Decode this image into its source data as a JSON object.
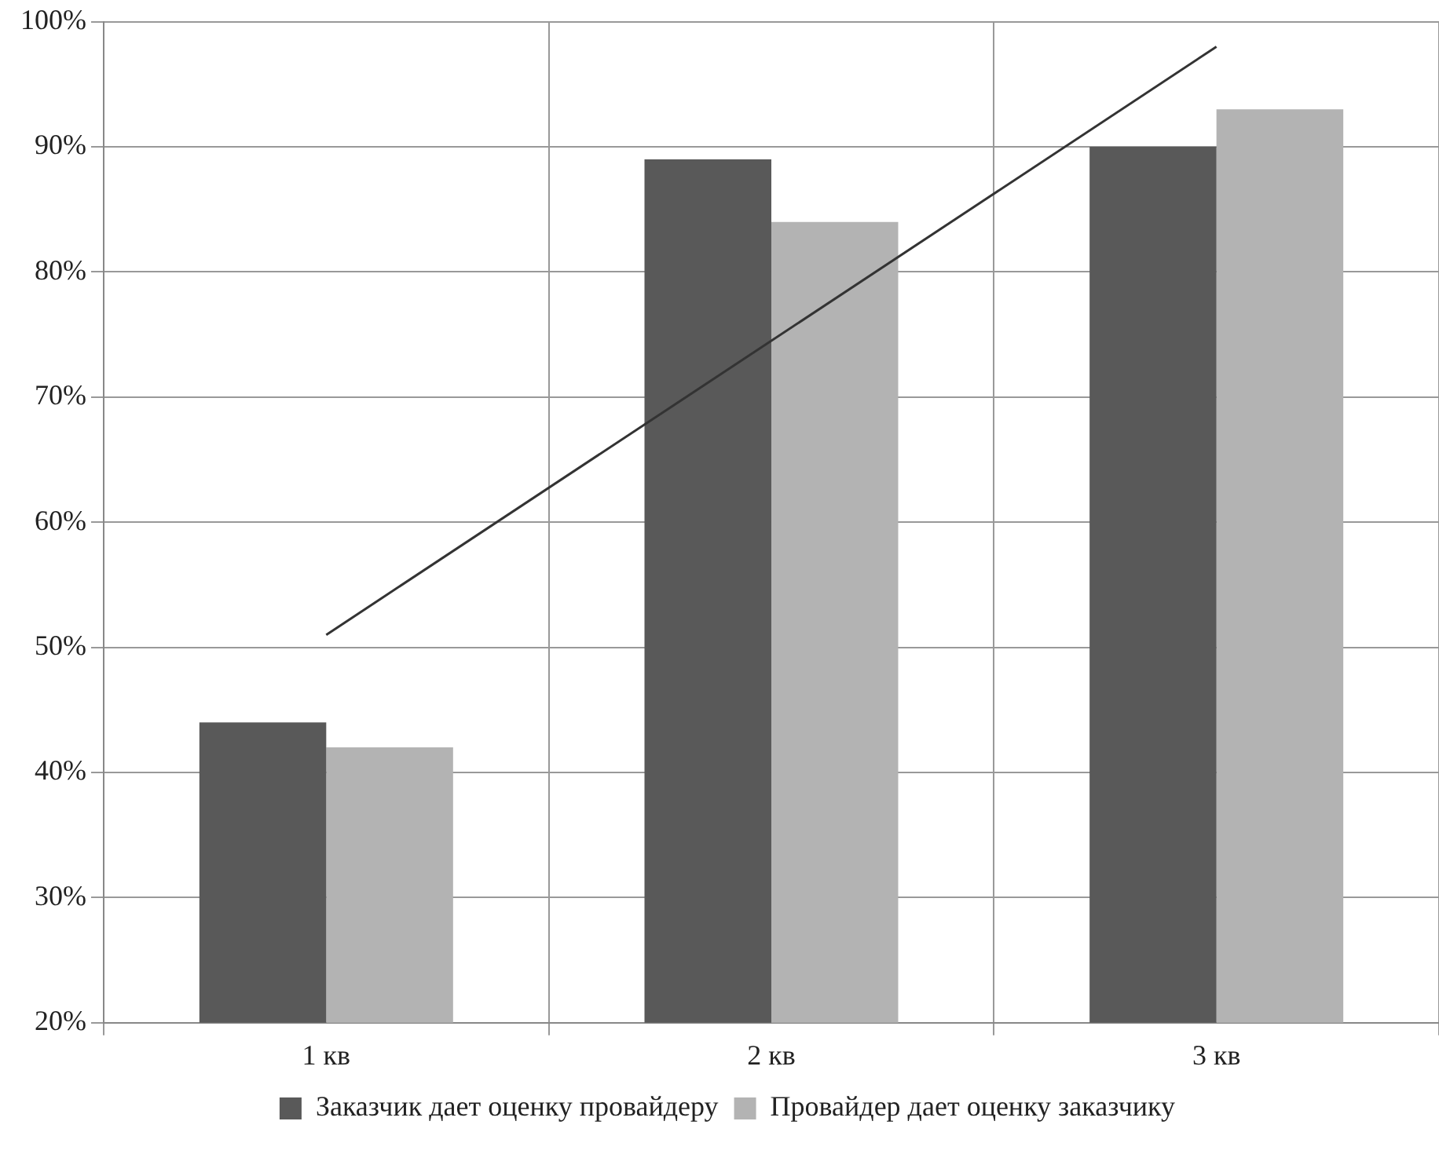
{
  "chart_data": {
    "type": "bar",
    "categories": [
      "1 кв",
      "2 кв",
      "3 кв"
    ],
    "series": [
      {
        "name": "Заказчик дает оценку провайдеру",
        "color": "#595959",
        "values": [
          44,
          89,
          90
        ]
      },
      {
        "name": "Провайдер дает оценку заказчику",
        "color": "#b3b3b3",
        "values": [
          42,
          84,
          93
        ]
      },
      {
        "type": "line",
        "color": "#333333",
        "x": [
          "1 кв",
          "3 кв"
        ],
        "values": [
          51,
          98
        ]
      }
    ],
    "ylim": [
      20,
      100
    ],
    "yticks": [
      {
        "value": 20,
        "label": "20%"
      },
      {
        "value": 30,
        "label": "30%"
      },
      {
        "value": 40,
        "label": "40%"
      },
      {
        "value": 50,
        "label": "50%"
      },
      {
        "value": 60,
        "label": "60%"
      },
      {
        "value": 70,
        "label": "70%"
      },
      {
        "value": 80,
        "label": "80%"
      },
      {
        "value": 90,
        "label": "90%"
      },
      {
        "value": 100,
        "label": "100%"
      }
    ],
    "grid": true,
    "legend": "bottom"
  }
}
